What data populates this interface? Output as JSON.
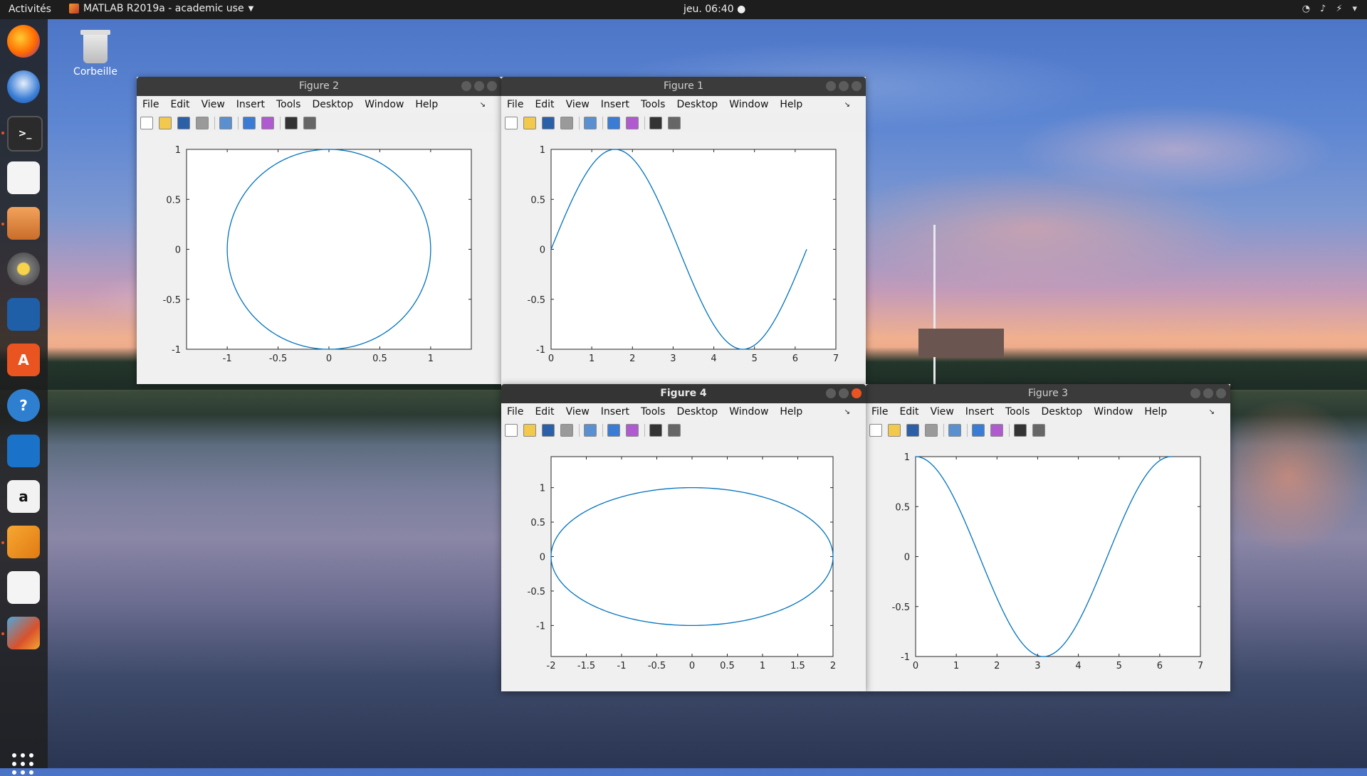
{
  "topbar": {
    "activities": "Activités",
    "app_title": "MATLAB R2019a - academic use",
    "clock": "jeu. 06:40 ●"
  },
  "desktop": {
    "trash_label": "Corbeille"
  },
  "dock": {
    "items": [
      "firefox-icon",
      "thunderbird-icon",
      "terminal-icon",
      "text-editor-icon",
      "files-icon",
      "rhythmbox-icon",
      "libreoffice-writer-icon",
      "software-center-icon",
      "help-icon",
      "system-monitor-icon",
      "amazon-icon",
      "matlab-64-icon",
      "text-editor-2-icon",
      "matlab-icon"
    ],
    "accent": "#e95420"
  },
  "menu_labels": [
    "File",
    "Edit",
    "View",
    "Insert",
    "Tools",
    "Desktop",
    "Window",
    "Help"
  ],
  "figures": [
    {
      "title": "Figure 2",
      "active": false
    },
    {
      "title": "Figure 1",
      "active": false
    },
    {
      "title": "Figure 4",
      "active": true
    },
    {
      "title": "Figure 3",
      "active": false
    }
  ],
  "chart_data": [
    {
      "type": "line",
      "figure": "Figure 2",
      "description": "unit circle x=cos(t), y=sin(t)",
      "series": [
        {
          "x_expr": "cos(t)",
          "y_expr": "sin(t)",
          "t_range": [
            0,
            6.2832
          ]
        }
      ],
      "xlim": [
        -1.4,
        1.4
      ],
      "ylim": [
        -1,
        1
      ],
      "xticks": [
        -1,
        -0.5,
        0,
        0.5,
        1
      ],
      "xtick_labels": [
        "-1",
        "-0.5",
        "0",
        "0.5",
        "1"
      ],
      "yticks": [
        -1,
        -0.5,
        0,
        0.5,
        1
      ],
      "ytick_labels": [
        "-1",
        "-0.5",
        "0",
        "0.5",
        "1"
      ],
      "color": "#0072bd"
    },
    {
      "type": "line",
      "figure": "Figure 1",
      "series": [
        {
          "x_expr": "t",
          "y_expr": "sin(t)",
          "t_range": [
            0,
            6.2832
          ]
        }
      ],
      "xlim": [
        0,
        7
      ],
      "ylim": [
        -1,
        1
      ],
      "xticks": [
        0,
        1,
        2,
        3,
        4,
        5,
        6,
        7
      ],
      "xtick_labels": [
        "0",
        "1",
        "2",
        "3",
        "4",
        "5",
        "6",
        "7"
      ],
      "yticks": [
        -1,
        -0.5,
        0,
        0.5,
        1
      ],
      "ytick_labels": [
        "-1",
        "-0.5",
        "0",
        "0.5",
        "1"
      ],
      "color": "#0072bd"
    },
    {
      "type": "line",
      "figure": "Figure 4",
      "series": [
        {
          "x_expr": "2*cos(t)",
          "y_expr": "sin(t)",
          "t_range": [
            0,
            6.2832
          ]
        }
      ],
      "xlim": [
        -2,
        2
      ],
      "ylim": [
        -1.45,
        1.45
      ],
      "xticks": [
        -2,
        -1.5,
        -1,
        -0.5,
        0,
        0.5,
        1,
        1.5,
        2
      ],
      "xtick_labels": [
        "-2",
        "-1.5",
        "-1",
        "-0.5",
        "0",
        "0.5",
        "1",
        "1.5",
        "2"
      ],
      "yticks": [
        -1,
        -0.5,
        0,
        0.5,
        1
      ],
      "ytick_labels": [
        "-1",
        "-0.5",
        "0",
        "0.5",
        "1"
      ],
      "color": "#0072bd"
    },
    {
      "type": "line",
      "figure": "Figure 3",
      "series": [
        {
          "x_expr": "t",
          "y_expr": "cos(t)",
          "t_range": [
            0,
            6.2832
          ]
        }
      ],
      "xlim": [
        0,
        7
      ],
      "ylim": [
        -1,
        1
      ],
      "xticks": [
        0,
        1,
        2,
        3,
        4,
        5,
        6,
        7
      ],
      "xtick_labels": [
        "0",
        "1",
        "2",
        "3",
        "4",
        "5",
        "6",
        "7"
      ],
      "yticks": [
        -1,
        -0.5,
        0,
        0.5,
        1
      ],
      "ytick_labels": [
        "-1",
        "-0.5",
        "0",
        "0.5",
        "1"
      ],
      "color": "#0072bd"
    }
  ]
}
